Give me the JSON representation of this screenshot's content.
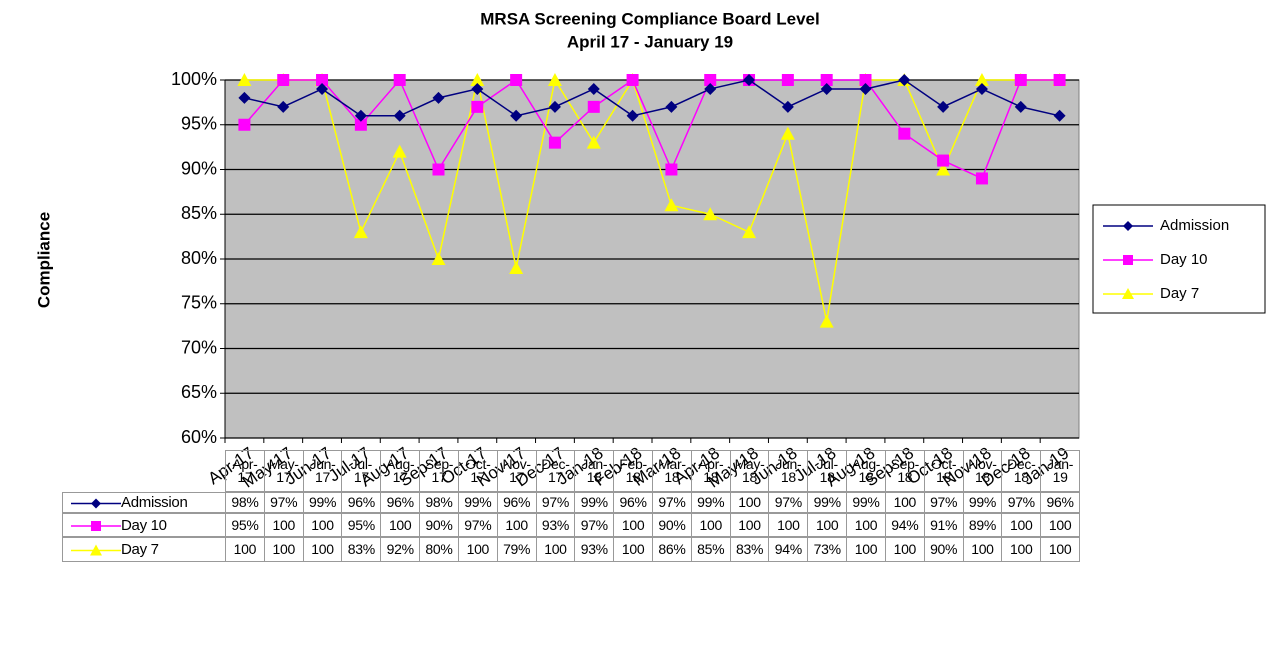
{
  "chart_data": {
    "type": "line",
    "title": "MRSA Screening Compliance Board Level",
    "subtitle": "April 17 - January 19",
    "y_label": "Compliance",
    "categories": [
      "Apr-17",
      "May-17",
      "Jun-17",
      "Jul-17",
      "Aug-17",
      "Sep-17",
      "Oct-17",
      "Nov-17",
      "Dec-17",
      "Jan-18",
      "Feb-18",
      "Mar-18",
      "Apr-18",
      "May-18",
      "Jun-18",
      "Jul-18",
      "Aug-18",
      "Sep-18",
      "Oct-18",
      "Nov-18",
      "Dec-18",
      "Jan-19"
    ],
    "series": [
      {
        "name": "Admission",
        "color": "#000080",
        "marker": "diamond",
        "values": [
          98,
          97,
          99,
          96,
          96,
          98,
          99,
          96,
          97,
          99,
          96,
          97,
          99,
          100,
          97,
          99,
          99,
          100,
          97,
          99,
          97,
          96
        ],
        "value_labels": [
          "98%",
          "97%",
          "99%",
          "96%",
          "96%",
          "98%",
          "99%",
          "96%",
          "97%",
          "99%",
          "96%",
          "97%",
          "99%",
          "100",
          "97%",
          "99%",
          "99%",
          "100",
          "97%",
          "99%",
          "97%",
          "96%"
        ]
      },
      {
        "name": "Day 10",
        "color": "#ff00ff",
        "marker": "square",
        "values": [
          95,
          100,
          100,
          95,
          100,
          90,
          97,
          100,
          93,
          97,
          100,
          90,
          100,
          100,
          100,
          100,
          100,
          94,
          91,
          89,
          100,
          100
        ],
        "value_labels": [
          "95%",
          "100",
          "100",
          "95%",
          "100",
          "90%",
          "97%",
          "100",
          "93%",
          "97%",
          "100",
          "90%",
          "100",
          "100",
          "100",
          "100",
          "100",
          "94%",
          "91%",
          "89%",
          "100",
          "100"
        ]
      },
      {
        "name": "Day 7",
        "color": "#ffff00",
        "marker": "triangle",
        "values": [
          100,
          100,
          100,
          83,
          92,
          80,
          100,
          79,
          100,
          93,
          100,
          86,
          85,
          83,
          94,
          73,
          100,
          100,
          90,
          100,
          100,
          100
        ],
        "value_labels": [
          "100",
          "100",
          "100",
          "83%",
          "92%",
          "80%",
          "100",
          "79%",
          "100",
          "93%",
          "100",
          "86%",
          "85%",
          "83%",
          "94%",
          "73%",
          "100",
          "100",
          "90%",
          "100",
          "100",
          "100"
        ]
      }
    ],
    "ylim": [
      60,
      100
    ],
    "yticks": [
      {
        "value": 60,
        "label": "60%"
      },
      {
        "value": 65,
        "label": "65%"
      },
      {
        "value": 70,
        "label": "70%"
      },
      {
        "value": 75,
        "label": "75%"
      },
      {
        "value": 80,
        "label": "80%"
      },
      {
        "value": 85,
        "label": "85%"
      },
      {
        "value": 90,
        "label": "90%"
      },
      {
        "value": 95,
        "label": "95%"
      },
      {
        "value": 100,
        "label": "100%"
      }
    ],
    "grid": true,
    "legend": "right"
  }
}
